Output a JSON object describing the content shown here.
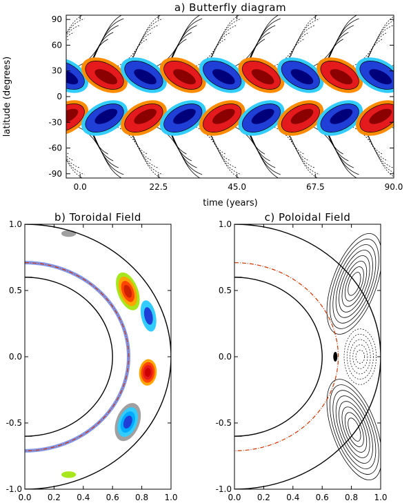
{
  "chart_data": [
    {
      "type": "heatmap",
      "title": "a) Butterfly diagram",
      "xlabel": "time (years)",
      "ylabel": "latitude (degrees)",
      "xlim": [
        -4,
        90
      ],
      "ylim": [
        -95,
        95
      ],
      "x_ticks": [
        "0.0",
        "22.5",
        "45.0",
        "67.5",
        "90.0"
      ],
      "y_ticks": [
        "90",
        "60",
        "30",
        "0",
        "-30",
        "-60",
        "-90"
      ],
      "cycle_period_years": 22.5,
      "lobe_centers_latitude": [
        25,
        -25
      ],
      "sign_sequence_north": [
        "positive",
        "negative",
        "positive",
        "negative",
        "positive",
        "negative",
        "positive",
        "negative"
      ],
      "colors": {
        "positive": "#e41a1c",
        "positive_core": "#8b0000",
        "positive_edge": "#ff8c00",
        "negative": "#1f3fd6",
        "negative_core": "#00007a",
        "negative_edge": "#33ccff",
        "outline": "#000000"
      }
    },
    {
      "type": "heatmap",
      "title": "b) Toroidal Field",
      "x_ticks": [
        "0.0",
        "0.2",
        "0.4",
        "0.6",
        "0.8",
        "1.0"
      ],
      "y_ticks": [
        "1.0",
        "0.5",
        "0.0",
        "-0.5",
        "-1.0"
      ],
      "xlim": [
        0,
        1.0
      ],
      "ylim": [
        -1.0,
        1.0
      ],
      "radius_inner": 0.6,
      "radius_tachocline": 0.71,
      "radius_surface": 1.0
    },
    {
      "type": "heatmap",
      "title": "c) Poloidal Field",
      "x_ticks": [
        "0.0",
        "0.2",
        "0.4",
        "0.6",
        "0.8",
        "1.0"
      ],
      "y_ticks": [
        "1.0",
        "0.5",
        "0.0",
        "-0.5",
        "-1.0"
      ],
      "xlim": [
        0,
        1.0
      ],
      "ylim": [
        -1.0,
        1.0
      ],
      "radius_inner": 0.6,
      "radius_tachocline": 0.71,
      "radius_surface": 1.0
    }
  ]
}
